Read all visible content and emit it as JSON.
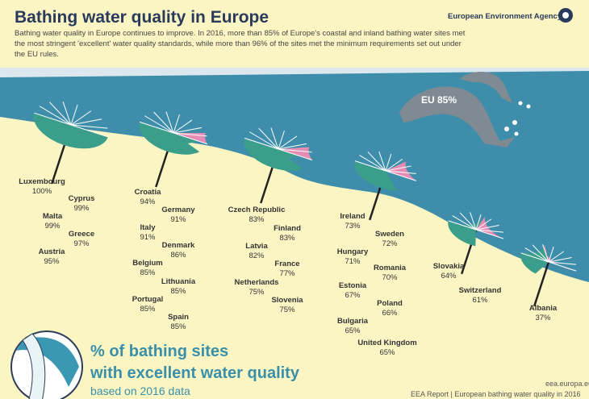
{
  "header": {
    "title": "Bathing water quality in Europe",
    "intro": "Bathing water quality in Europe continues to improve. In 2016, more than 85% of Europe's coastal and inland bathing water sites met the most stringent 'excellent' water quality standards, while more than 96% of the sites met the minimum requirements set out under the EU rules.",
    "agency": "European Environment Agency"
  },
  "eu_label": "EU 85%",
  "countries": [
    [
      "Luxembourg",
      "100%"
    ],
    [
      "Cyprus",
      "99%"
    ],
    [
      "Malta",
      "99%"
    ],
    [
      "Greece",
      "97%"
    ],
    [
      "Austria",
      "95%"
    ],
    [
      "Croatia",
      "94%"
    ],
    [
      "Germany",
      "91%"
    ],
    [
      "Italy",
      "91%"
    ],
    [
      "Denmark",
      "86%"
    ],
    [
      "Belgium",
      "85%"
    ],
    [
      "Lithuania",
      "85%"
    ],
    [
      "Portugal",
      "85%"
    ],
    [
      "Spain",
      "85%"
    ],
    [
      "Czech Republic",
      "83%"
    ],
    [
      "Finland",
      "83%"
    ],
    [
      "Latvia",
      "82%"
    ],
    [
      "France",
      "77%"
    ],
    [
      "Netherlands",
      "75%"
    ],
    [
      "Slovenia",
      "75%"
    ],
    [
      "Ireland",
      "73%"
    ],
    [
      "Sweden",
      "72%"
    ],
    [
      "Hungary",
      "71%"
    ],
    [
      "Romania",
      "70%"
    ],
    [
      "Estonia",
      "67%"
    ],
    [
      "Poland",
      "66%"
    ],
    [
      "Bulgaria",
      "65%"
    ],
    [
      "United Kingdom",
      "65%"
    ],
    [
      "Slovakia",
      "64%"
    ],
    [
      "Switzerland",
      "61%"
    ],
    [
      "Albania",
      "37%"
    ]
  ],
  "caption": {
    "line1": "% of bathing sites",
    "line2": "with excellent water quality",
    "line3": "based on 2016 data"
  },
  "footer": {
    "url": "eea.europa.eu",
    "source": "EEA Report | European bathing water quality in 2016"
  }
}
